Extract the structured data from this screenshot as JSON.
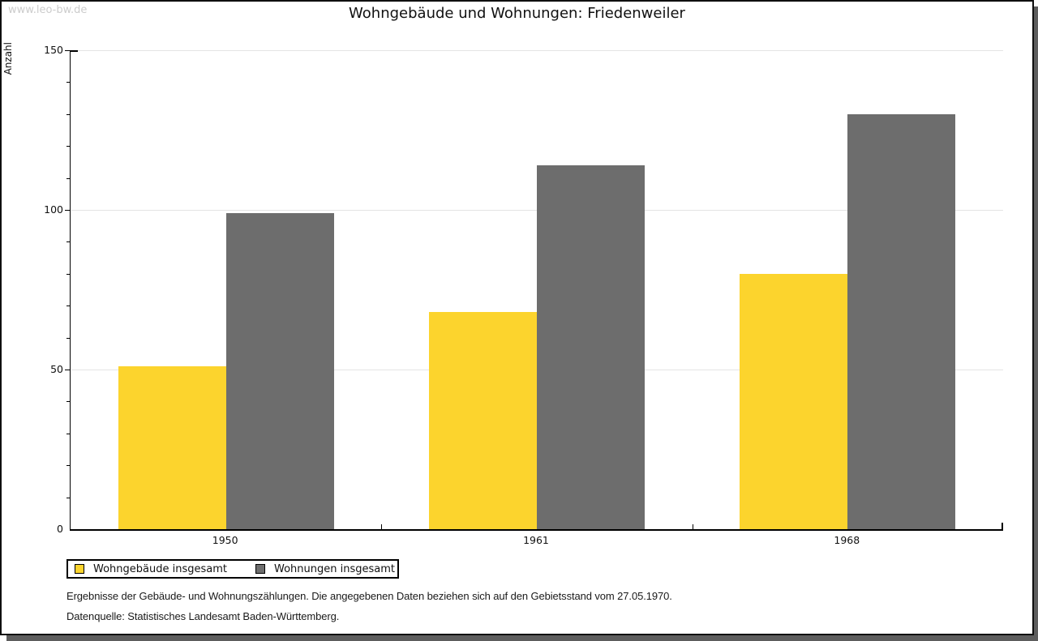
{
  "watermark": "www.leo-bw.de",
  "title": "Wohngebäude und Wohnungen: Friedenweiler",
  "chart_data": {
    "type": "bar",
    "title": "Wohngebäude und Wohnungen: Friedenweiler",
    "categories": [
      "1950",
      "1961",
      "1968"
    ],
    "series": [
      {
        "name": "Wohngebäude insgesamt",
        "color": "#FCD42D",
        "values": [
          51,
          68,
          80
        ]
      },
      {
        "name": "Wohnungen insgesamt",
        "color": "#6D6D6D",
        "values": [
          99,
          114,
          130
        ]
      }
    ],
    "xlabel": "",
    "ylabel": "Anzahl",
    "ylim": [
      0,
      150
    ],
    "yticks_major": [
      0,
      50,
      100,
      150
    ],
    "ytick_minor_step": 10,
    "grid": "horizontal-at-major-ticks",
    "legend_position": "bottom-left"
  },
  "footnotes": [
    "Ergebnisse der Gebäude- und Wohnungszählungen. Die angegebenen Daten beziehen sich auf den Gebietsstand vom 27.05.1970.",
    "Datenquelle: Statistisches Landesamt Baden-Württemberg."
  ],
  "colors": {
    "gridline": "#E4E4E4",
    "axis": "#000000",
    "watermark_text": "#CCCCCC",
    "frame_shadow": "#5D5D5D"
  }
}
